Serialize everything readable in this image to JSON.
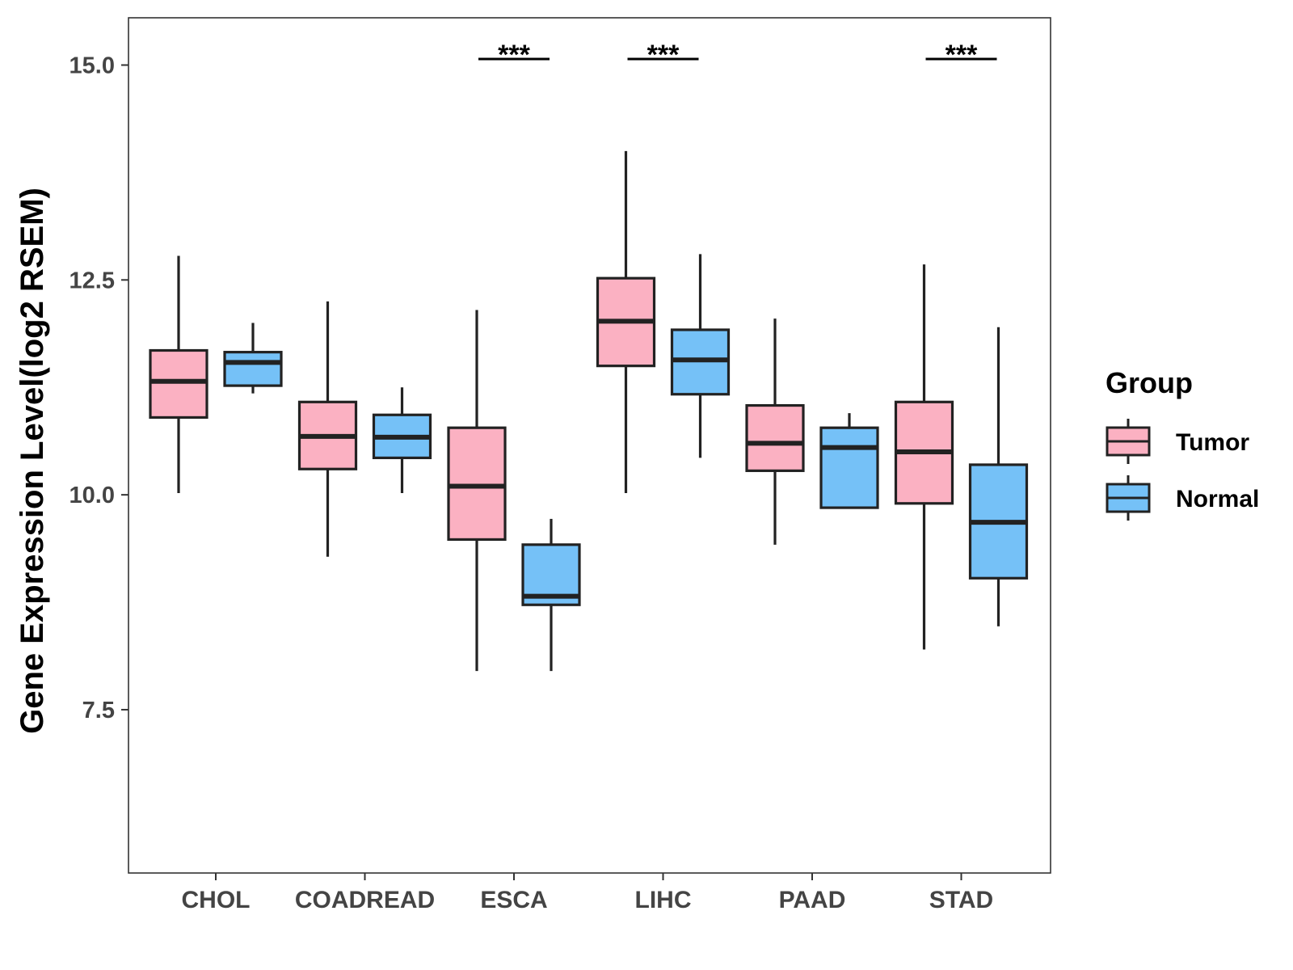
{
  "chart_data": {
    "type": "boxplot",
    "title": "",
    "xlabel": "",
    "ylabel": "Gene Expression Level(log2 RSEM)",
    "ylim": [
      5.6,
      15.55
    ],
    "yticks": [
      7.5,
      10.0,
      12.5,
      15.0
    ],
    "ytick_labels": [
      "7.5",
      "10.0",
      "12.5",
      "15.0"
    ],
    "categories": [
      "CHOL",
      "COADREAD",
      "ESCA",
      "LIHC",
      "PAAD",
      "STAD"
    ],
    "legend": {
      "title": "Group",
      "position": "right",
      "entries": [
        {
          "name": "Tumor",
          "color": "#fbb1c2"
        },
        {
          "name": "Normal",
          "color": "#75c1f7"
        }
      ]
    },
    "series": [
      {
        "name": "Tumor",
        "color": "#fbb1c2",
        "boxes": [
          {
            "category": "CHOL",
            "min": 10.02,
            "q1": 10.9,
            "median": 11.32,
            "q3": 11.68,
            "max": 12.78
          },
          {
            "category": "COADREAD",
            "min": 9.28,
            "q1": 10.3,
            "median": 10.68,
            "q3": 11.08,
            "max": 12.25
          },
          {
            "category": "ESCA",
            "min": 7.95,
            "q1": 9.48,
            "median": 10.1,
            "q3": 10.78,
            "max": 12.15
          },
          {
            "category": "LIHC",
            "min": 10.02,
            "q1": 11.5,
            "median": 12.02,
            "q3": 12.52,
            "max": 14.0
          },
          {
            "category": "PAAD",
            "min": 9.42,
            "q1": 10.28,
            "median": 10.6,
            "q3": 11.04,
            "max": 12.05
          },
          {
            "category": "STAD",
            "min": 8.2,
            "q1": 9.9,
            "median": 10.5,
            "q3": 11.08,
            "max": 12.68
          }
        ]
      },
      {
        "name": "Normal",
        "color": "#75c1f7",
        "boxes": [
          {
            "category": "CHOL",
            "min": 11.18,
            "q1": 11.27,
            "median": 11.54,
            "q3": 11.66,
            "max": 12.0
          },
          {
            "category": "COADREAD",
            "min": 10.02,
            "q1": 10.43,
            "median": 10.67,
            "q3": 10.93,
            "max": 11.25
          },
          {
            "category": "ESCA",
            "min": 7.95,
            "q1": 8.72,
            "median": 8.82,
            "q3": 9.42,
            "max": 9.72
          },
          {
            "category": "LIHC",
            "min": 10.43,
            "q1": 11.17,
            "median": 11.57,
            "q3": 11.92,
            "max": 12.8
          },
          {
            "category": "PAAD",
            "min": 9.85,
            "q1": 9.85,
            "median": 10.55,
            "q3": 10.78,
            "max": 10.95
          },
          {
            "category": "STAD",
            "min": 8.47,
            "q1": 9.03,
            "median": 9.68,
            "q3": 10.35,
            "max": 11.95
          }
        ]
      }
    ],
    "annotations": [
      {
        "category": "ESCA",
        "text": "***",
        "y": 15.07
      },
      {
        "category": "LIHC",
        "text": "***",
        "y": 15.07
      },
      {
        "category": "STAD",
        "text": "***",
        "y": 15.07
      }
    ]
  }
}
